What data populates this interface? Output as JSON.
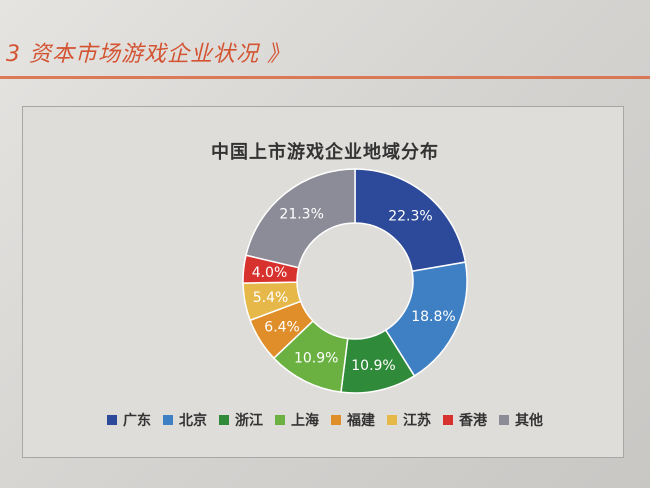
{
  "page": {
    "section_heading": "3 资本市场游戏企业状况 》"
  },
  "chart_data": {
    "type": "pie",
    "title": "中国上市游戏企业地域分布",
    "categories": [
      "广东",
      "北京",
      "浙江",
      "上海",
      "福建",
      "江苏",
      "香港",
      "其他"
    ],
    "values": [
      22.3,
      18.8,
      10.9,
      10.9,
      6.4,
      5.4,
      4.0,
      21.3
    ],
    "data_labels": [
      "22.3%",
      "18.8%",
      "10.9%",
      "10.9%",
      "6.4%",
      "5.4%",
      "4.0%",
      "21.3%"
    ],
    "colors": [
      "#2c4a99",
      "#3f7fc4",
      "#2f8a3a",
      "#6ab142",
      "#e08e2a",
      "#e6b84a",
      "#d8322f",
      "#8c8c98"
    ],
    "legend_placement": "bottom",
    "donut": true
  }
}
